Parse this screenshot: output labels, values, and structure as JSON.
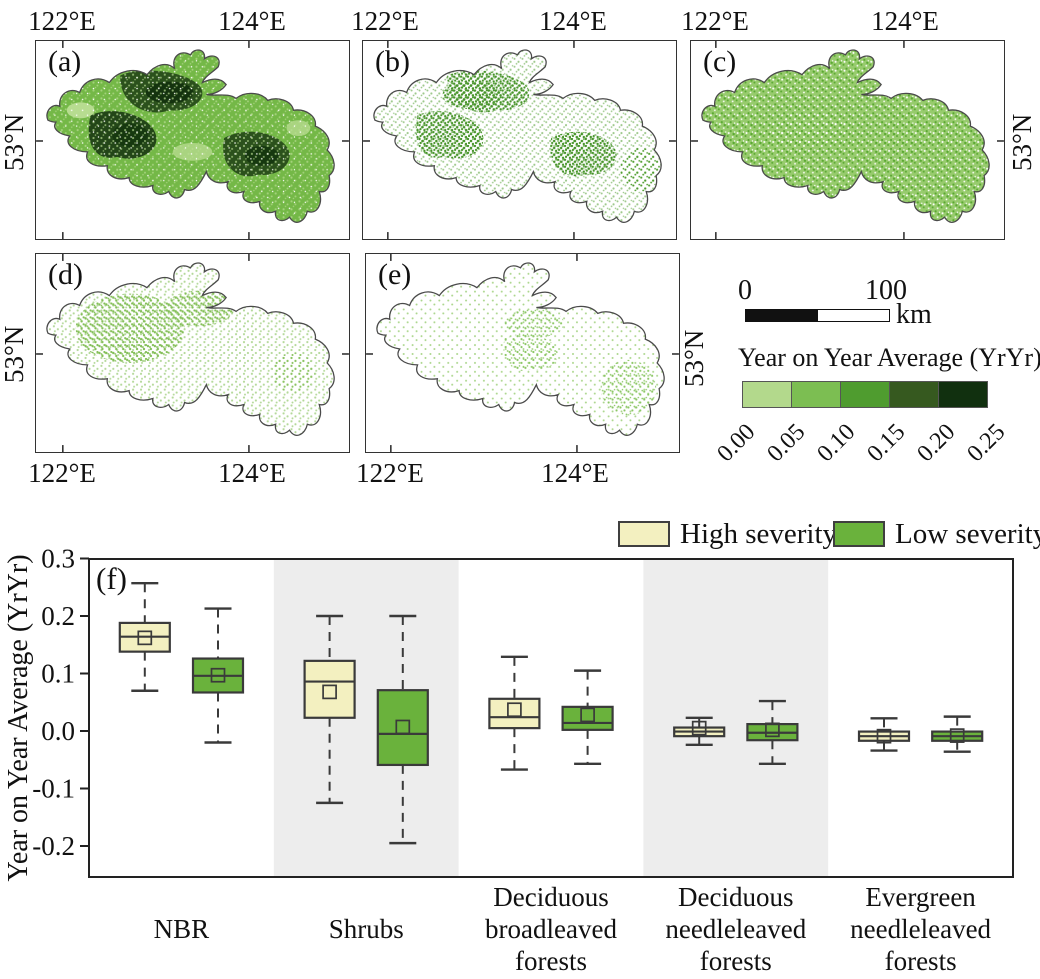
{
  "maps": {
    "panels": [
      {
        "label": "(a)",
        "top_axis": [
          "122°E",
          "124°E"
        ],
        "left_axis": "53°N",
        "description": "very dense dark-green burn severity map"
      },
      {
        "label": "(b)",
        "top_axis": [
          "122°E",
          "124°E"
        ],
        "description": "sparse medium-green speckled map"
      },
      {
        "label": "(c)",
        "top_axis": [
          "122°E",
          "124°E"
        ],
        "right_axis": "53°N",
        "description": "uniform light-green map"
      },
      {
        "label": "(d)",
        "bottom_axis": [
          "122°E",
          "124°E"
        ],
        "left_axis": "53°N",
        "description": "moderate light-green speckled map"
      },
      {
        "label": "(e)",
        "bottom_axis": [
          "122°E",
          "124°E"
        ],
        "right_axis": "53°N",
        "description": "sparse light-green speckled map"
      }
    ],
    "scale_bar": {
      "start": "0",
      "end": "100",
      "unit": "km"
    },
    "colorbar": {
      "title": "Year on Year Average (YrYr)",
      "tick_labels": [
        "0.00",
        "0.05",
        "0.10",
        "0.15",
        "0.20",
        "0.25"
      ],
      "colors": [
        "#b3d98c",
        "#7cbe52",
        "#4f9c2f",
        "#36591f",
        "#11300f"
      ]
    },
    "map_colors": {
      "outline": "#4a4a4a",
      "speckle_medium": "#4f9d2e",
      "speckle_light": "#8cc463"
    }
  },
  "chart_data": {
    "type": "boxplot",
    "panel_label": "(f)",
    "ylabel": "Year on Year Average (YrYr)",
    "ylim": [
      -0.26,
      0.3
    ],
    "yticks": [
      0.3,
      0.2,
      0.1,
      0.0,
      -0.1,
      -0.2
    ],
    "grid": false,
    "legend_position": "top-right",
    "categories": [
      "NBR",
      "Shrubs",
      "Deciduous broadleaved forests",
      "Deciduous needleleaved forests",
      "Evergreen needleleaved forests"
    ],
    "shaded_categories": [
      1,
      3
    ],
    "band_color": "#ededed",
    "series": [
      {
        "name": "High severity",
        "color": "#f3f0c0",
        "boxes": [
          {
            "whisker_low": 0.07,
            "q1": 0.138,
            "median": 0.164,
            "mean": 0.162,
            "q3": 0.188,
            "whisker_high": 0.257
          },
          {
            "whisker_low": -0.125,
            "q1": 0.023,
            "median": 0.086,
            "mean": 0.068,
            "q3": 0.122,
            "whisker_high": 0.2
          },
          {
            "whisker_low": -0.067,
            "q1": 0.005,
            "median": 0.024,
            "mean": 0.037,
            "q3": 0.056,
            "whisker_high": 0.129
          },
          {
            "whisker_low": -0.024,
            "q1": -0.009,
            "median": -0.001,
            "mean": 0.005,
            "q3": 0.006,
            "whisker_high": 0.023
          },
          {
            "whisker_low": -0.034,
            "q1": -0.017,
            "median": -0.009,
            "mean": -0.009,
            "q3": -0.001,
            "whisker_high": 0.022
          }
        ]
      },
      {
        "name": "Low severity",
        "color": "#6ab23c",
        "boxes": [
          {
            "whisker_low": -0.02,
            "q1": 0.067,
            "median": 0.096,
            "mean": 0.097,
            "q3": 0.126,
            "whisker_high": 0.213
          },
          {
            "whisker_low": -0.195,
            "q1": -0.059,
            "median": -0.005,
            "mean": 0.007,
            "q3": 0.071,
            "whisker_high": 0.2
          },
          {
            "whisker_low": -0.057,
            "q1": 0.002,
            "median": 0.014,
            "mean": 0.028,
            "q3": 0.042,
            "whisker_high": 0.105
          },
          {
            "whisker_low": -0.057,
            "q1": -0.016,
            "median": -0.003,
            "mean": 0.002,
            "q3": 0.012,
            "whisker_high": 0.052
          },
          {
            "whisker_low": -0.036,
            "q1": -0.017,
            "median": -0.009,
            "mean": -0.008,
            "q3": -0.001,
            "whisker_high": 0.025
          }
        ]
      }
    ]
  }
}
